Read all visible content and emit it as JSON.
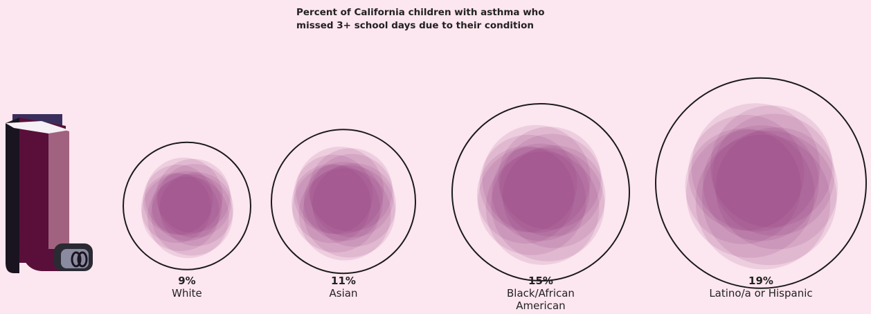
{
  "chart_data": {
    "type": "bubble",
    "title": "Percent of California children with asthma who missed 3+ school days due to their condition",
    "categories": [
      "White",
      "Asian",
      "Black/African American",
      "Latino/a or Hispanic"
    ],
    "values": [
      9,
      11,
      15,
      19
    ],
    "value_labels": [
      "9%",
      "11%",
      "15%",
      "19%"
    ],
    "color": "#8e2f74"
  }
}
